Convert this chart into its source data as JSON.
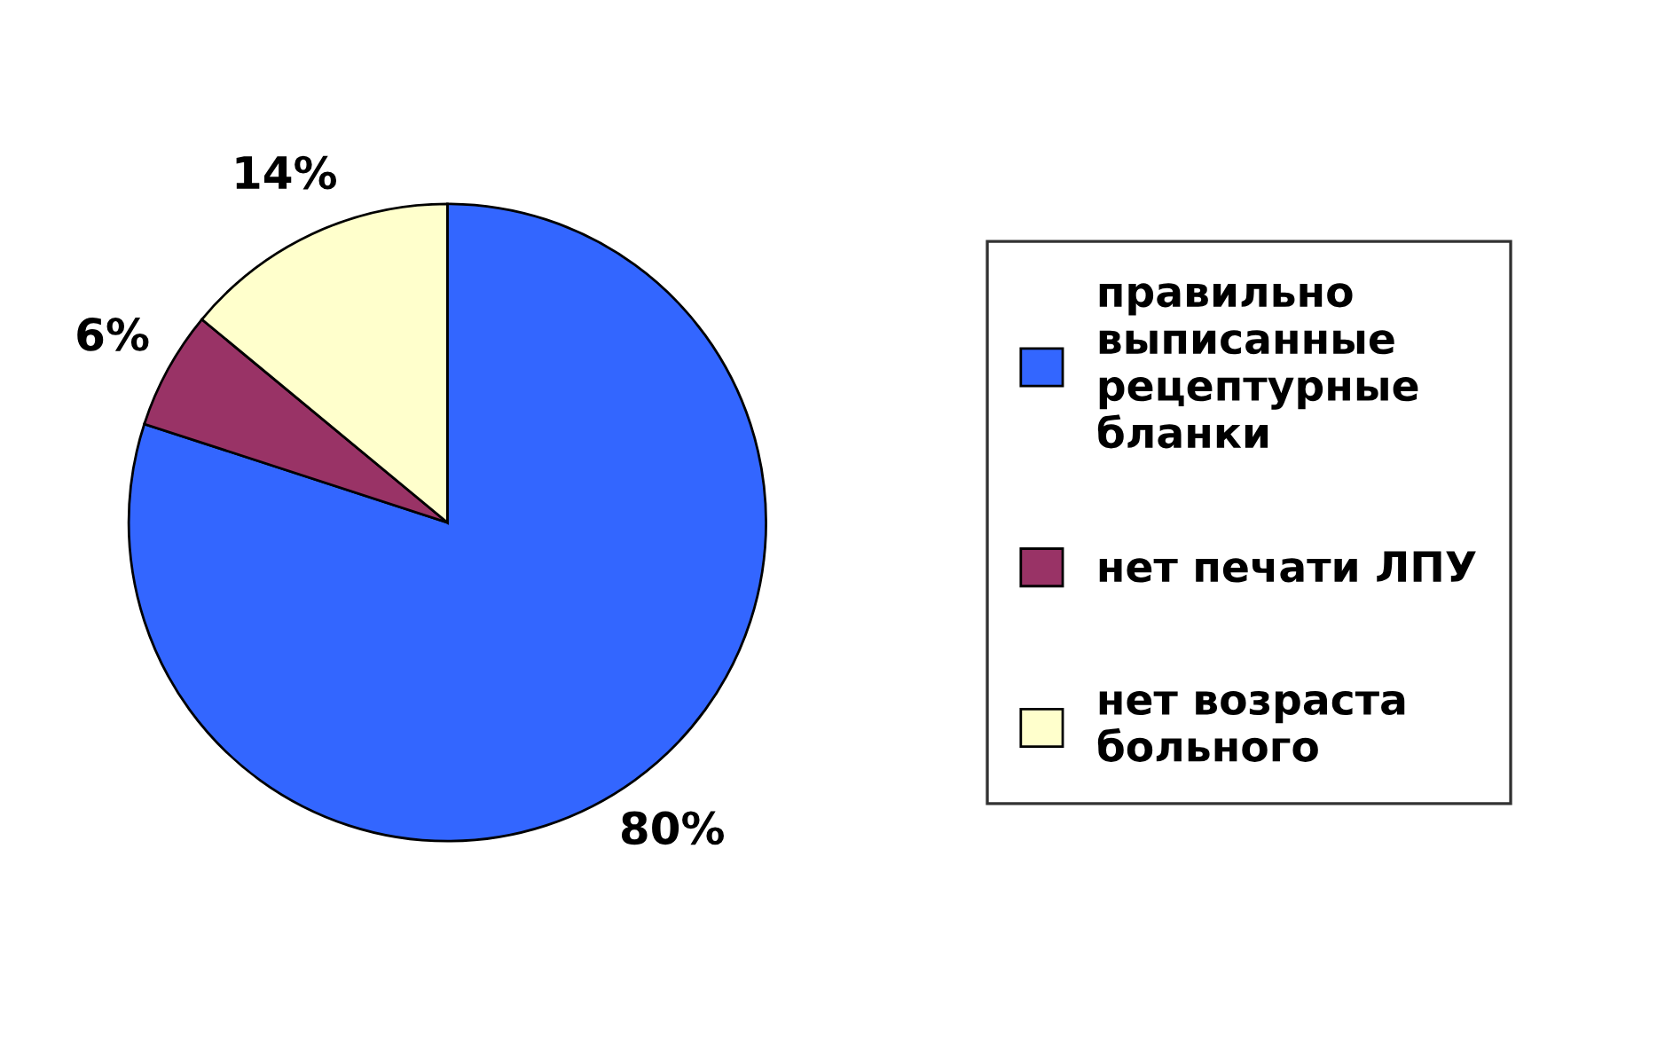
{
  "chart_data": {
    "type": "pie",
    "categories": [
      "правильно\nвыписанные\nрецептурные\nбланки",
      "нет печати ЛПУ",
      "нет возраста\nбольного"
    ],
    "values": [
      80,
      6,
      14
    ],
    "colors": [
      "#3366ff",
      "#993366",
      "#ffffcc"
    ],
    "value_labels": [
      "80%",
      "6%",
      "14%"
    ],
    "legend": "right"
  }
}
